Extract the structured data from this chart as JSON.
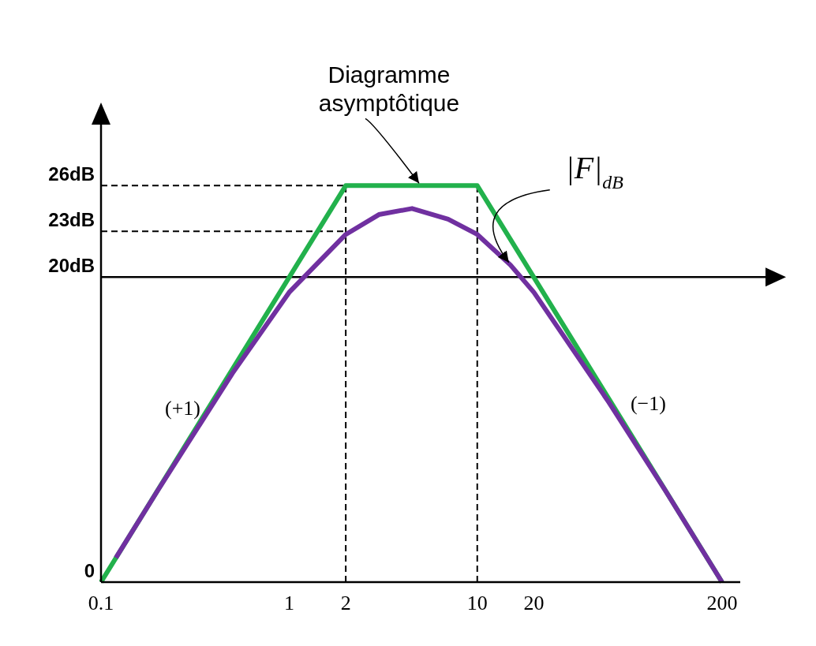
{
  "chart_data": {
    "type": "line",
    "log": "x",
    "xlim": [
      0.1,
      250
    ],
    "xticks": [
      0.1,
      1,
      2,
      10,
      20,
      200
    ],
    "ylim": [
      0,
      30
    ],
    "yticks": [
      0,
      {
        "value": 20,
        "label": "20dB"
      },
      {
        "value": 23,
        "label": "23dB"
      },
      {
        "value": 26,
        "label": "26dB"
      }
    ],
    "grid": false,
    "series": [
      {
        "color": "#22b14c",
        "x": [
          0.1,
          2,
          10,
          200
        ],
        "values": [
          0,
          26,
          26,
          0
        ]
      },
      {
        "color": "#7030a0",
        "x": [
          0.12,
          0.2,
          0.5,
          1,
          2,
          3,
          4.5,
          7,
          10,
          15,
          20,
          50,
          100,
          200
        ],
        "values": [
          1.6,
          6.0,
          13.7,
          19.0,
          22.8,
          24.1,
          24.5,
          23.8,
          22.8,
          20.8,
          19.0,
          11.8,
          6.0,
          0
        ]
      }
    ],
    "ref_lines": [
      {
        "axis": "y",
        "value": 20,
        "line_style": "solid",
        "color": "#000000"
      },
      {
        "axis": "y",
        "value": 26,
        "line_style": "dashed",
        "color": "#000000"
      },
      {
        "axis": "y",
        "value": 23,
        "line_style": "dashed",
        "color": "#000000"
      },
      {
        "axis": "x",
        "value": 2,
        "line_style": "dashed",
        "color": "#000000"
      },
      {
        "axis": "x",
        "value": 10,
        "line_style": "dashed",
        "color": "#000000"
      }
    ],
    "annotations": [
      {
        "text": "Diagramme asymptôtique",
        "x": 5,
        "y": 26
      },
      {
        "text": "|F|$_{dB}$",
        "x": 15,
        "y": 20.8
      },
      {
        "text": "(+1)",
        "x": 0.4,
        "y": 12
      },
      {
        "text": "(−1)",
        "x": 50,
        "y": 11.8
      }
    ]
  }
}
